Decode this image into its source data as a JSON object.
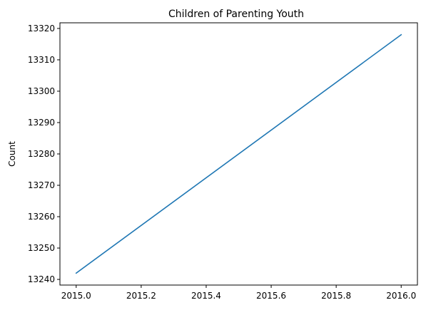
{
  "chart_data": {
    "type": "line",
    "title": "Children of Parenting Youth",
    "xlabel": "",
    "ylabel": "Count",
    "x": [
      2015.0,
      2016.0
    ],
    "series": [
      {
        "values": [
          13242,
          13318
        ],
        "color": "#1f77b4"
      }
    ],
    "xlim": [
      2014.95,
      2016.05
    ],
    "ylim": [
      13238.2,
      13321.8
    ],
    "x_ticks": [
      2015.0,
      2015.2,
      2015.4,
      2015.6,
      2015.8,
      2016.0
    ],
    "x_tick_labels": [
      "2015.0",
      "2015.2",
      "2015.4",
      "2015.6",
      "2015.8",
      "2016.0"
    ],
    "y_ticks": [
      13240,
      13250,
      13260,
      13270,
      13280,
      13290,
      13300,
      13310,
      13320
    ],
    "y_tick_labels": [
      "13240",
      "13250",
      "13260",
      "13270",
      "13280",
      "13290",
      "13300",
      "13310",
      "13320"
    ],
    "grid": false,
    "legend": "none"
  }
}
